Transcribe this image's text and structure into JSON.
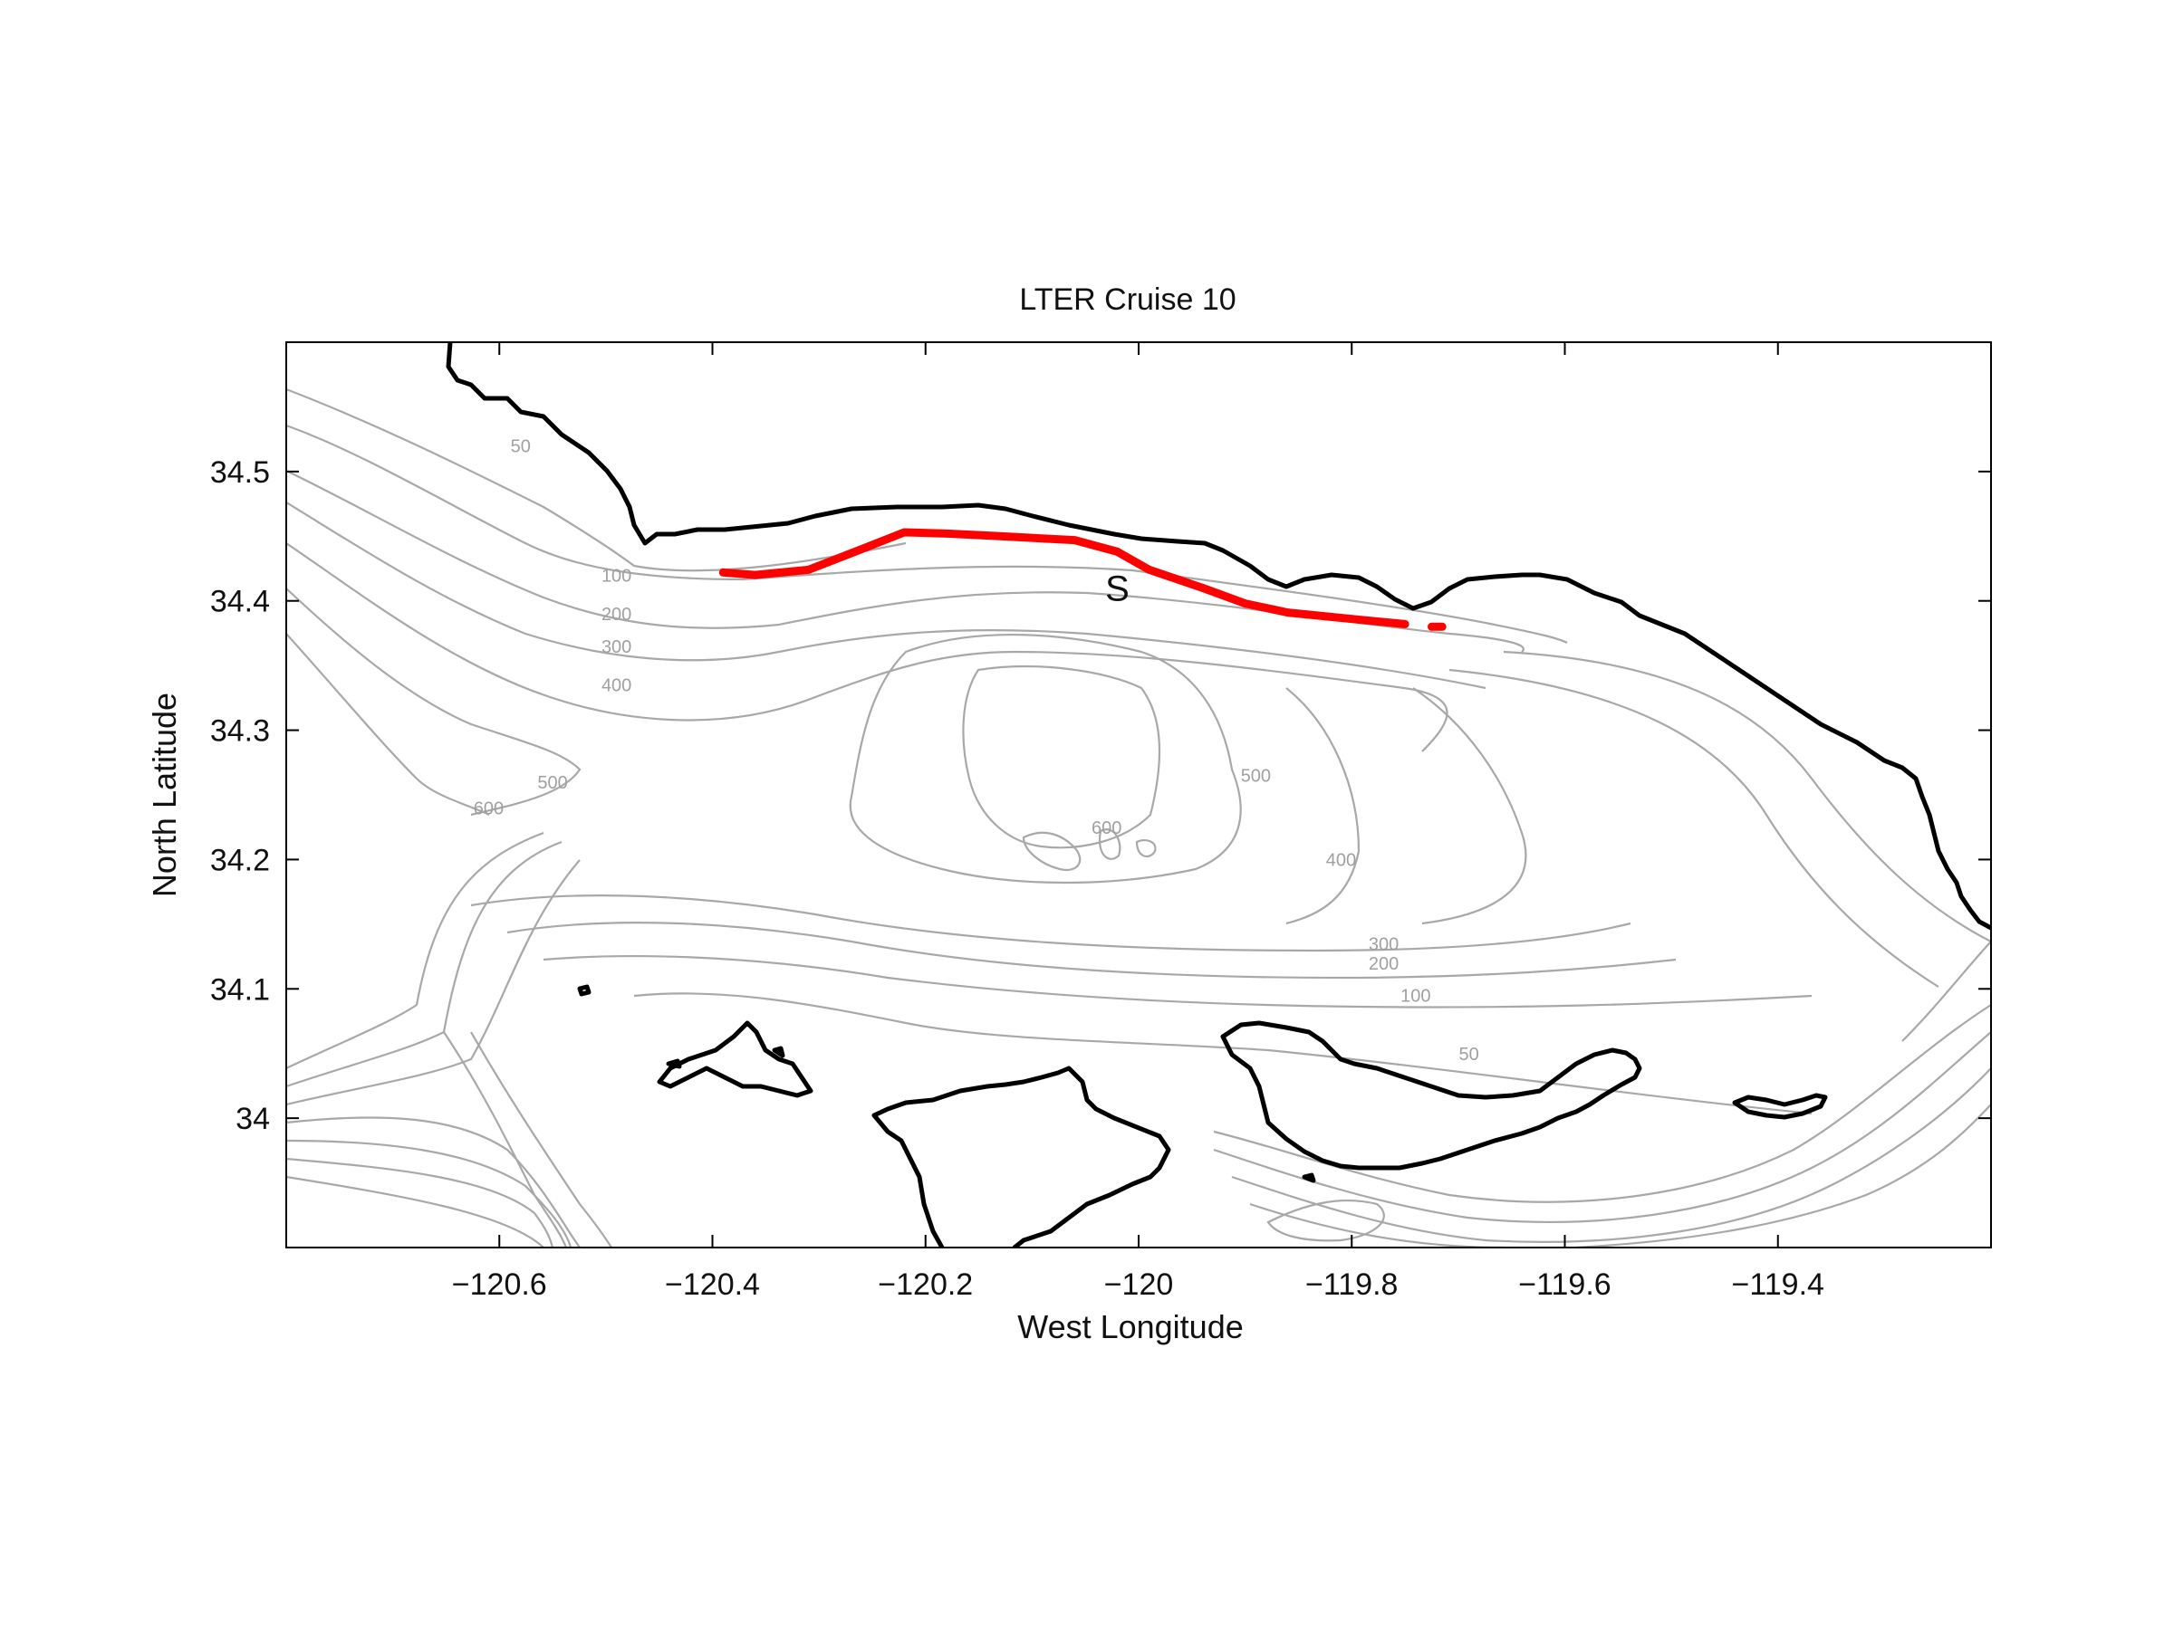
{
  "map": {
    "title": "LTER Cruise 10",
    "xlabel": "West Longitude",
    "ylabel": "North Latitude",
    "xlim": [
      -120.8,
      -119.2
    ],
    "ylim": [
      33.9,
      34.6
    ],
    "xticks": [
      {
        "value": -120.6,
        "label": "−120.6"
      },
      {
        "value": -120.4,
        "label": "−120.4"
      },
      {
        "value": -120.2,
        "label": "−120.2"
      },
      {
        "value": -120.0,
        "label": "−120"
      },
      {
        "value": -119.8,
        "label": "−119.8"
      },
      {
        "value": -119.6,
        "label": "−119.6"
      },
      {
        "value": -119.4,
        "label": "−119.4"
      }
    ],
    "yticks": [
      {
        "value": 34.0,
        "label": "34"
      },
      {
        "value": 34.1,
        "label": "34.1"
      },
      {
        "value": 34.2,
        "label": "34.2"
      },
      {
        "value": 34.3,
        "label": "34.3"
      },
      {
        "value": 34.4,
        "label": "34.4"
      },
      {
        "value": 34.5,
        "label": "34.5"
      }
    ],
    "contour_labels": [
      {
        "text": "50",
        "lon": -120.58,
        "lat": 34.515
      },
      {
        "text": "100",
        "lon": -120.49,
        "lat": 34.415
      },
      {
        "text": "200",
        "lon": -120.49,
        "lat": 34.385
      },
      {
        "text": "300",
        "lon": -120.49,
        "lat": 34.36
      },
      {
        "text": "400",
        "lon": -120.49,
        "lat": 34.33
      },
      {
        "text": "500",
        "lon": -120.55,
        "lat": 34.255
      },
      {
        "text": "600",
        "lon": -120.61,
        "lat": 34.235
      },
      {
        "text": "500",
        "lon": -119.89,
        "lat": 34.26
      },
      {
        "text": "600",
        "lon": -120.03,
        "lat": 34.22
      },
      {
        "text": "400",
        "lon": -119.81,
        "lat": 34.195
      },
      {
        "text": "300",
        "lon": -119.77,
        "lat": 34.13
      },
      {
        "text": "200",
        "lon": -119.77,
        "lat": 34.115
      },
      {
        "text": "100",
        "lon": -119.74,
        "lat": 34.09
      },
      {
        "text": "50",
        "lon": -119.69,
        "lat": 34.045
      }
    ],
    "station": {
      "label": "S",
      "lon": -120.02,
      "lat": 34.41
    },
    "track": [
      [
        -120.39,
        34.422
      ],
      [
        -120.36,
        34.42
      ],
      [
        -120.31,
        34.424
      ],
      [
        -120.26,
        34.44
      ],
      [
        -120.22,
        34.453
      ],
      [
        -120.18,
        34.452
      ],
      [
        -120.13,
        34.45
      ],
      [
        -120.06,
        34.447
      ],
      [
        -120.02,
        34.438
      ],
      [
        -119.99,
        34.424
      ],
      [
        -119.94,
        34.41
      ],
      [
        -119.9,
        34.398
      ],
      [
        -119.86,
        34.391
      ],
      [
        -119.8,
        34.386
      ],
      [
        -119.75,
        34.382
      ]
    ],
    "track_tail": [
      [
        -119.725,
        34.38
      ],
      [
        -119.715,
        34.38
      ]
    ],
    "colors": {
      "track": "#ff0000",
      "coast": "#000000",
      "contour": "#a8a8a8"
    }
  }
}
